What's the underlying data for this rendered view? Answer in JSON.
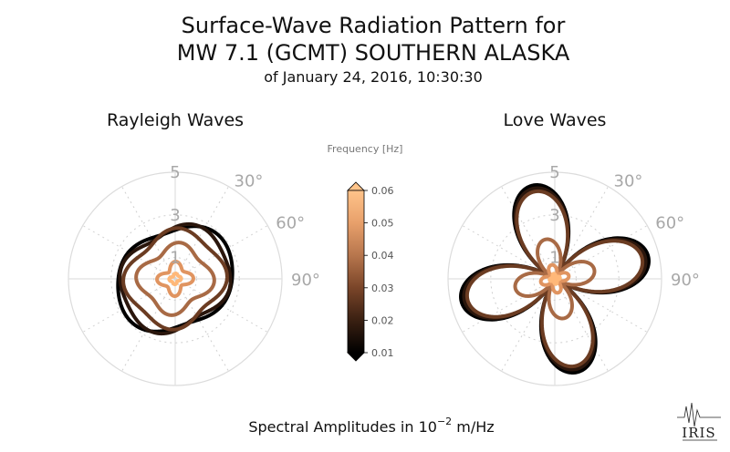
{
  "chart_data": {
    "type": "polar",
    "title": {
      "line1": "Surface-Wave Radiation Pattern for",
      "line2": "MW 7.1 (GCMT) SOUTHERN ALASKA",
      "line3": "of January 24, 2016, 10:30:30"
    },
    "xlabel_prefix": "Spectral Amplitudes in 10",
    "xlabel_exponent": "−2",
    "xlabel_suffix": " m/Hz",
    "radial_ticks": [
      "1",
      "3",
      "5"
    ],
    "radial_max": 5,
    "angle_ticks": [
      "30°",
      "60°",
      "90°"
    ],
    "colorbar": {
      "label": "Frequency [Hz]",
      "ticks": [
        "0.01",
        "0.02",
        "0.03",
        "0.04",
        "0.05",
        "0.06"
      ],
      "range": [
        0.01,
        0.06
      ]
    },
    "panels": [
      {
        "name": "rayleigh",
        "title": "Rayleigh Waves",
        "series": [
          {
            "frequency": 0.01,
            "color": "#000000",
            "type": "rayleigh",
            "base": 2.55,
            "a2": 0.32,
            "phi2": 1.1,
            "a4": 0.1,
            "phi4": 0.6
          },
          {
            "frequency": 0.02,
            "color": "#2a160c",
            "type": "rayleigh",
            "base": 2.45,
            "a2": 0.25,
            "phi2": 0.95,
            "a4": 0.16,
            "phi4": 0.3
          },
          {
            "frequency": 0.03,
            "color": "#6b3c22",
            "type": "rayleigh",
            "base": 2.2,
            "a2": 0.12,
            "phi2": 0.9,
            "a4": 0.2,
            "phi4": 0.0
          },
          {
            "frequency": 0.04,
            "color": "#a86a45",
            "type": "rayleigh",
            "base": 1.55,
            "a2": 0.1,
            "phi2": 1.2,
            "a4": 0.22,
            "phi4": 0.1
          },
          {
            "frequency": 0.05,
            "color": "#e09460",
            "type": "rayleigh",
            "base": 0.65,
            "a2": 0.05,
            "phi2": 1.0,
            "a4": 0.18,
            "phi4": 0.0
          },
          {
            "frequency": 0.06,
            "color": "#ffb879",
            "type": "rayleigh",
            "base": 0.22,
            "a2": 0.03,
            "phi2": 1.0,
            "a4": 0.05,
            "phi4": 0.0
          }
        ]
      },
      {
        "name": "love",
        "title": "Love Waves",
        "series": [
          {
            "frequency": 0.01,
            "color": "#000000",
            "type": "love",
            "base": 0.05,
            "a2": 4.45,
            "phi2": -0.55,
            "a4": 0.0,
            "phi4": 0.0
          },
          {
            "frequency": 0.02,
            "color": "#2a160c",
            "type": "love",
            "base": 0.05,
            "a2": 4.3,
            "phi2": -0.55,
            "a4": 0.0,
            "phi4": 0.0
          },
          {
            "frequency": 0.03,
            "color": "#6b3c22",
            "type": "love",
            "base": 0.05,
            "a2": 4.15,
            "phi2": -0.55,
            "a4": 0.0,
            "phi4": 0.0
          },
          {
            "frequency": 0.04,
            "color": "#a86a45",
            "type": "love",
            "base": 0.05,
            "a2": 1.85,
            "phi2": -0.55,
            "a4": 0.0,
            "phi4": 0.0
          },
          {
            "frequency": 0.05,
            "color": "#e09460",
            "type": "love",
            "base": 0.05,
            "a2": 0.62,
            "phi2": -0.55,
            "a4": 0.0,
            "phi4": 0.0
          },
          {
            "frequency": 0.06,
            "color": "#ffb879",
            "type": "love",
            "base": 0.03,
            "a2": 0.22,
            "phi2": -0.55,
            "a4": 0.0,
            "phi4": 0.0
          }
        ]
      }
    ]
  },
  "logo": {
    "text": "IRIS"
  }
}
